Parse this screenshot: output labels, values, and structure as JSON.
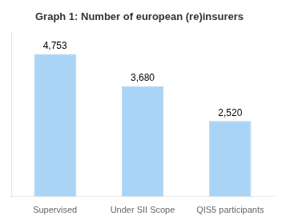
{
  "chart_data": {
    "type": "bar",
    "title": "Graph 1: Number of european (re)insurers",
    "categories": [
      "Supervised",
      "Under SII Scope",
      "QIS5 participants"
    ],
    "values": [
      4753,
      3680,
      2520
    ],
    "value_labels": [
      "4,753",
      "3,680",
      "2,520"
    ],
    "data_labels": true,
    "color": "#aad4f5",
    "ylim": [
      0,
      5500
    ],
    "grid": false,
    "tick_labels": "x"
  }
}
